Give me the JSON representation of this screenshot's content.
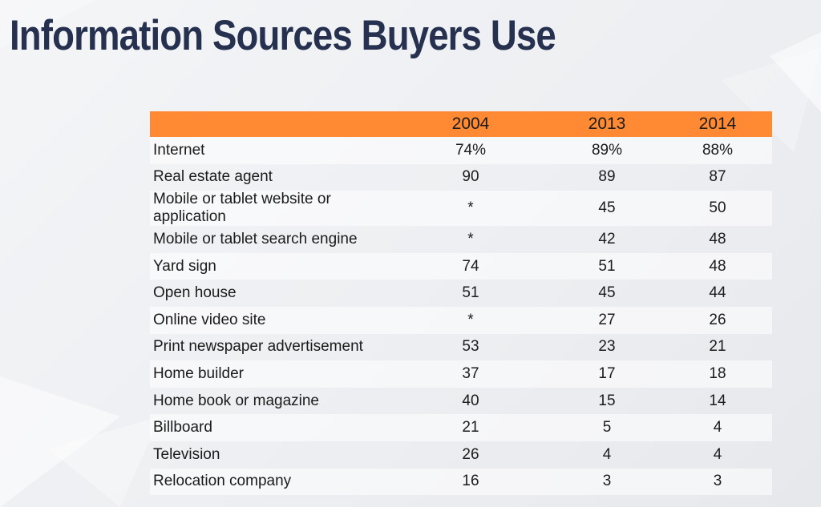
{
  "title": "Information Sources Buyers Use",
  "chart_data": {
    "type": "table",
    "title": "Information Sources Buyers Use",
    "columns": [
      "",
      "2004",
      "2013",
      "2014"
    ],
    "rows": [
      {
        "source": "Internet",
        "y2004": "74%",
        "y2013": "89%",
        "y2014": "88%"
      },
      {
        "source": "Real estate agent",
        "y2004": "90",
        "y2013": "89",
        "y2014": "87"
      },
      {
        "source": "Mobile or tablet website or application",
        "y2004": "*",
        "y2013": "45",
        "y2014": "50"
      },
      {
        "source": "Mobile or tablet search engine",
        "y2004": "*",
        "y2013": "42",
        "y2014": "48"
      },
      {
        "source": "Yard sign",
        "y2004": "74",
        "y2013": "51",
        "y2014": "48"
      },
      {
        "source": "Open house",
        "y2004": "51",
        "y2013": "45",
        "y2014": "44"
      },
      {
        "source": "Online video site",
        "y2004": "*",
        "y2013": "27",
        "y2014": "26"
      },
      {
        "source": "Print newspaper advertisement",
        "y2004": "53",
        "y2013": "23",
        "y2014": "21"
      },
      {
        "source": "Home builder",
        "y2004": "37",
        "y2013": "17",
        "y2014": "18"
      },
      {
        "source": "Home book or magazine",
        "y2004": "40",
        "y2013": "15",
        "y2014": "14"
      },
      {
        "source": "Billboard",
        "y2004": "21",
        "y2013": "5",
        "y2014": "4"
      },
      {
        "source": "Television",
        "y2004": "26",
        "y2013": "4",
        "y2014": "4"
      },
      {
        "source": "Relocation company",
        "y2004": "16",
        "y2013": "3",
        "y2014": "3"
      }
    ]
  },
  "colors": {
    "header_bg": "#ff8a33",
    "title": "#263150",
    "text": "#1b1b1b"
  }
}
